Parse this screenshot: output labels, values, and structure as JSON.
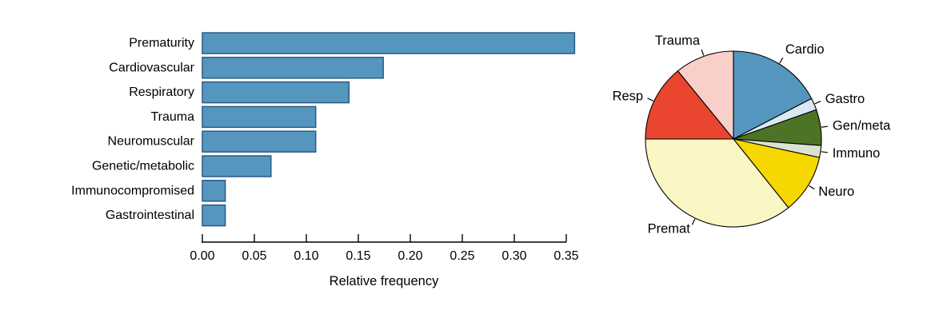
{
  "figure": {
    "description": "Side-by-side bar chart and pie chart of relative frequency by condition category"
  },
  "chart_data": [
    {
      "type": "bar",
      "orientation": "horizontal",
      "title": "",
      "categories": [
        "Prematurity",
        "Cardiovascular",
        "Respiratory",
        "Trauma",
        "Neuromuscular",
        "Genetic/metabolic",
        "Immunocompromised",
        "Gastrointestinal"
      ],
      "values": [
        0.358,
        0.174,
        0.141,
        0.109,
        0.109,
        0.066,
        0.022,
        0.022
      ],
      "xlabel": "Relative frequency",
      "ylabel": "",
      "xlim": [
        0,
        0.37
      ],
      "xticks": [
        0.0,
        0.05,
        0.1,
        0.15,
        0.2,
        0.25,
        0.3,
        0.35
      ],
      "xtick_labels": [
        "0.00",
        "0.05",
        "0.10",
        "0.15",
        "0.20",
        "0.25",
        "0.30",
        "0.35"
      ],
      "grid": "off",
      "bar_color": "#5596BE",
      "bar_border_color": "#2D5986",
      "axis_color": "#000000"
    },
    {
      "type": "pie",
      "title": "",
      "labels": [
        "Cardio",
        "Gastro",
        "Gen/meta",
        "Immuno",
        "Neuro",
        "Premat",
        "Resp",
        "Trauma"
      ],
      "values": [
        0.174,
        0.022,
        0.066,
        0.022,
        0.109,
        0.358,
        0.141,
        0.109
      ],
      "colors": [
        "#5596BE",
        "#D9E8F2",
        "#4D7327",
        "#DCE2D0",
        "#F5D800",
        "#FAF7C4",
        "#EA452F",
        "#F9CFC9"
      ],
      "slice_border_color": "#000000",
      "start_angle_deg": 0,
      "direction": "clockwise",
      "legend_position": "none",
      "label_style": "outside-with-leader-ticks"
    }
  ]
}
